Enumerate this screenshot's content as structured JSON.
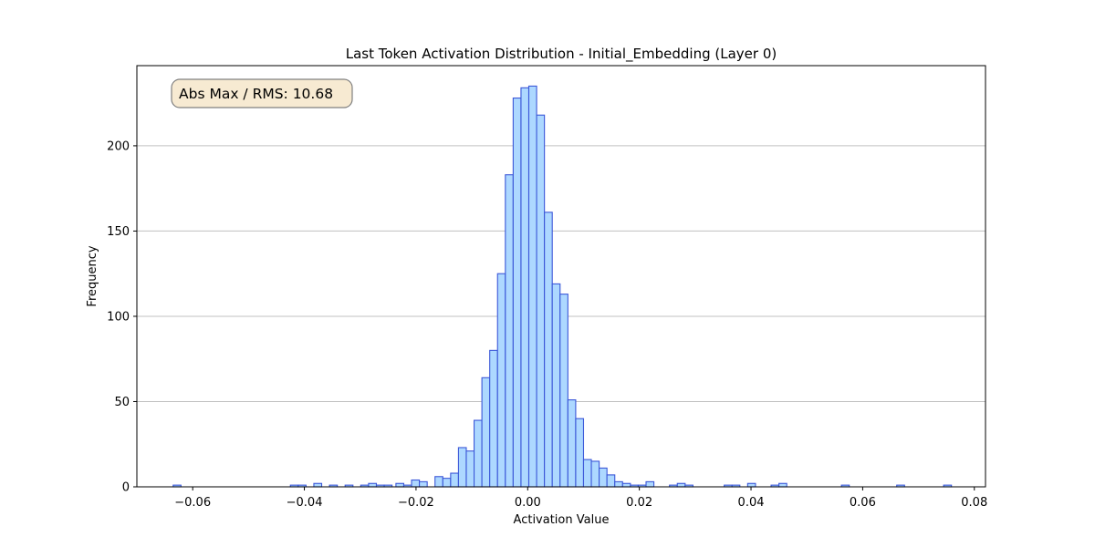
{
  "chart_data": {
    "type": "bar",
    "title": "Last Token Activation Distribution - Initial_Embedding (Layer 0)",
    "xlabel": "Activation Value",
    "ylabel": "Frequency",
    "annotation": "Abs Max / RMS: 10.68",
    "xlim": [
      -0.07,
      0.082
    ],
    "ylim": [
      0,
      247
    ],
    "xticks": [
      -0.06,
      -0.04,
      -0.02,
      0.0,
      0.02,
      0.04,
      0.06,
      0.08
    ],
    "xtick_labels": [
      "−0.06",
      "−0.04",
      "−0.02",
      "0.00",
      "0.02",
      "0.04",
      "0.06",
      "0.08"
    ],
    "yticks": [
      0,
      50,
      100,
      150,
      200
    ],
    "ytick_labels": [
      "0",
      "50",
      "100",
      "150",
      "200"
    ],
    "grid": "y",
    "bin_width": 0.0014,
    "bins": [
      {
        "x0": -0.0635,
        "count": 1
      },
      {
        "x0": -0.0425,
        "count": 1
      },
      {
        "x0": -0.0411,
        "count": 1
      },
      {
        "x0": -0.0383,
        "count": 2
      },
      {
        "x0": -0.0355,
        "count": 1
      },
      {
        "x0": -0.0327,
        "count": 1
      },
      {
        "x0": -0.0299,
        "count": 1
      },
      {
        "x0": -0.0285,
        "count": 2
      },
      {
        "x0": -0.0271,
        "count": 1
      },
      {
        "x0": -0.0257,
        "count": 1
      },
      {
        "x0": -0.0236,
        "count": 2
      },
      {
        "x0": -0.0222,
        "count": 1
      },
      {
        "x0": -0.0208,
        "count": 4
      },
      {
        "x0": -0.0194,
        "count": 3
      },
      {
        "x0": -0.0166,
        "count": 6
      },
      {
        "x0": -0.0152,
        "count": 5
      },
      {
        "x0": -0.0138,
        "count": 8
      },
      {
        "x0": -0.0124,
        "count": 23
      },
      {
        "x0": -0.011,
        "count": 21
      },
      {
        "x0": -0.0096,
        "count": 39
      },
      {
        "x0": -0.0082,
        "count": 64
      },
      {
        "x0": -0.0068,
        "count": 80
      },
      {
        "x0": -0.0054,
        "count": 125
      },
      {
        "x0": -0.004,
        "count": 183
      },
      {
        "x0": -0.0026,
        "count": 228
      },
      {
        "x0": -0.0012,
        "count": 234
      },
      {
        "x0": 0.0002,
        "count": 235
      },
      {
        "x0": 0.0016,
        "count": 218
      },
      {
        "x0": 0.003,
        "count": 161
      },
      {
        "x0": 0.0044,
        "count": 119
      },
      {
        "x0": 0.0058,
        "count": 113
      },
      {
        "x0": 0.0072,
        "count": 51
      },
      {
        "x0": 0.0086,
        "count": 40
      },
      {
        "x0": 0.01,
        "count": 16
      },
      {
        "x0": 0.0114,
        "count": 15
      },
      {
        "x0": 0.0128,
        "count": 11
      },
      {
        "x0": 0.0142,
        "count": 7
      },
      {
        "x0": 0.0156,
        "count": 3
      },
      {
        "x0": 0.017,
        "count": 2
      },
      {
        "x0": 0.0184,
        "count": 1
      },
      {
        "x0": 0.0198,
        "count": 1
      },
      {
        "x0": 0.0212,
        "count": 3
      },
      {
        "x0": 0.0254,
        "count": 1
      },
      {
        "x0": 0.0268,
        "count": 2
      },
      {
        "x0": 0.0282,
        "count": 1
      },
      {
        "x0": 0.0352,
        "count": 1
      },
      {
        "x0": 0.0366,
        "count": 1
      },
      {
        "x0": 0.0394,
        "count": 2
      },
      {
        "x0": 0.0436,
        "count": 1
      },
      {
        "x0": 0.045,
        "count": 2
      },
      {
        "x0": 0.0562,
        "count": 1
      },
      {
        "x0": 0.0661,
        "count": 1
      },
      {
        "x0": 0.0745,
        "count": 1
      }
    ],
    "colors": {
      "bar_fill": "#add8ff",
      "bar_edge": "#3b57d8",
      "grid": "#c0c0c0",
      "annotation_fill": "#f7ead2",
      "annotation_edge": "#808080"
    }
  }
}
